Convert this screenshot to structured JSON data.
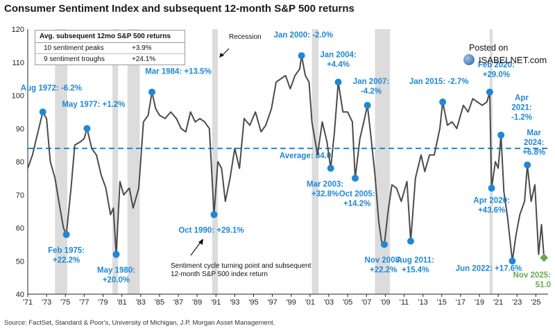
{
  "chart_data": {
    "type": "line",
    "title": "Consumer Sentiment Index and subsequent 12-month S&P 500 returns",
    "ylim": [
      40,
      120
    ],
    "yticks": [
      40,
      50,
      60,
      70,
      80,
      90,
      100,
      110,
      120
    ],
    "xlim": [
      1971,
      2026.3
    ],
    "xticks": [
      "'71",
      "'73",
      "'75",
      "'77",
      "'79",
      "'81",
      "'83",
      "'85",
      "'87",
      "'89",
      "'91",
      "'93",
      "'95",
      "'97",
      "'99",
      "'01",
      "'03",
      "'05",
      "'07",
      "'09",
      "'11",
      "'13",
      "'15",
      "'17",
      "'19",
      "'21",
      "'23",
      "'25"
    ],
    "average": {
      "value": 84.0,
      "label": "Average: 84.0"
    },
    "recessions": [
      [
        1973.9,
        1975.2
      ],
      [
        1980.0,
        1980.6
      ],
      [
        1981.6,
        1982.9
      ],
      [
        1990.6,
        1991.2
      ],
      [
        2001.2,
        2001.9
      ],
      [
        2007.9,
        2009.5
      ],
      [
        2020.1,
        2020.4
      ]
    ],
    "recession_label": "Recession",
    "series": [
      {
        "values": [
          [
            1971.0,
            78
          ],
          [
            1971.5,
            82
          ],
          [
            1972.0,
            88
          ],
          [
            1972.6,
            95
          ],
          [
            1973.0,
            93
          ],
          [
            1973.4,
            80
          ],
          [
            1973.9,
            75
          ],
          [
            1974.3,
            68
          ],
          [
            1974.8,
            60
          ],
          [
            1975.1,
            58
          ],
          [
            1975.6,
            72
          ],
          [
            1976.0,
            85
          ],
          [
            1976.6,
            86
          ],
          [
            1977.0,
            87
          ],
          [
            1977.3,
            90
          ],
          [
            1977.8,
            84
          ],
          [
            1978.3,
            82
          ],
          [
            1978.8,
            76
          ],
          [
            1979.3,
            72
          ],
          [
            1979.8,
            64
          ],
          [
            1980.1,
            66
          ],
          [
            1980.4,
            52
          ],
          [
            1980.8,
            74
          ],
          [
            1981.2,
            70
          ],
          [
            1981.8,
            72
          ],
          [
            1982.2,
            66
          ],
          [
            1982.8,
            72
          ],
          [
            1983.3,
            92
          ],
          [
            1983.8,
            94
          ],
          [
            1984.2,
            101
          ],
          [
            1984.6,
            96
          ],
          [
            1985.0,
            94
          ],
          [
            1985.6,
            93
          ],
          [
            1986.2,
            95
          ],
          [
            1986.8,
            93
          ],
          [
            1987.3,
            90
          ],
          [
            1987.8,
            89
          ],
          [
            1988.3,
            95
          ],
          [
            1988.8,
            92
          ],
          [
            1989.3,
            93
          ],
          [
            1989.8,
            92
          ],
          [
            1990.3,
            90
          ],
          [
            1990.8,
            64
          ],
          [
            1991.2,
            80
          ],
          [
            1991.6,
            78
          ],
          [
            1992.0,
            68
          ],
          [
            1992.5,
            75
          ],
          [
            1993.0,
            84
          ],
          [
            1993.5,
            78
          ],
          [
            1994.0,
            93
          ],
          [
            1994.6,
            91
          ],
          [
            1995.2,
            95
          ],
          [
            1995.8,
            89
          ],
          [
            1996.3,
            91
          ],
          [
            1996.9,
            96
          ],
          [
            1997.4,
            104
          ],
          [
            1997.9,
            105
          ],
          [
            1998.4,
            106
          ],
          [
            1998.9,
            102
          ],
          [
            1999.4,
            106
          ],
          [
            1999.9,
            108
          ],
          [
            2000.1,
            112
          ],
          [
            2000.5,
            106
          ],
          [
            2000.9,
            104
          ],
          [
            2001.2,
            92
          ],
          [
            2001.8,
            82
          ],
          [
            2002.3,
            92
          ],
          [
            2002.8,
            86
          ],
          [
            2003.2,
            78
          ],
          [
            2003.6,
            89
          ],
          [
            2004.0,
            104
          ],
          [
            2004.5,
            95
          ],
          [
            2005.0,
            95
          ],
          [
            2005.5,
            92
          ],
          [
            2005.8,
            75
          ],
          [
            2006.3,
            87
          ],
          [
            2006.8,
            93
          ],
          [
            2007.1,
            97
          ],
          [
            2007.5,
            87
          ],
          [
            2007.9,
            76
          ],
          [
            2008.3,
            62
          ],
          [
            2008.6,
            56
          ],
          [
            2008.9,
            55
          ],
          [
            2009.3,
            65
          ],
          [
            2009.7,
            73
          ],
          [
            2010.2,
            72
          ],
          [
            2010.7,
            68
          ],
          [
            2011.3,
            74
          ],
          [
            2011.7,
            56
          ],
          [
            2012.2,
            75
          ],
          [
            2012.8,
            82
          ],
          [
            2013.2,
            77
          ],
          [
            2013.7,
            82
          ],
          [
            2014.2,
            82
          ],
          [
            2014.8,
            90
          ],
          [
            2015.1,
            98
          ],
          [
            2015.6,
            91
          ],
          [
            2016.1,
            92
          ],
          [
            2016.6,
            90
          ],
          [
            2016.9,
            93
          ],
          [
            2017.3,
            97
          ],
          [
            2017.8,
            95
          ],
          [
            2018.3,
            99
          ],
          [
            2018.8,
            98
          ],
          [
            2019.3,
            97
          ],
          [
            2019.8,
            98
          ],
          [
            2020.1,
            101
          ],
          [
            2020.3,
            72
          ],
          [
            2020.7,
            80
          ],
          [
            2021.0,
            78
          ],
          [
            2021.3,
            88
          ],
          [
            2021.6,
            71
          ],
          [
            2022.0,
            63
          ],
          [
            2022.5,
            50
          ],
          [
            2022.9,
            58
          ],
          [
            2023.3,
            64
          ],
          [
            2023.8,
            68
          ],
          [
            2024.1,
            79
          ],
          [
            2024.5,
            68
          ],
          [
            2024.9,
            73
          ],
          [
            2025.3,
            52
          ],
          [
            2025.6,
            61
          ],
          [
            2025.87,
            51
          ]
        ]
      }
    ],
    "annotations": [
      {
        "x": 1972.6,
        "y": 95,
        "label": "Aug 1972: -6.2%",
        "tx": 1973.5,
        "ty": 101.5,
        "anchor": "middle",
        "lines": [
          "Aug 1972: -6.2%"
        ]
      },
      {
        "x": 1975.1,
        "y": 58,
        "label": "Feb 1975: +22.2%",
        "tx": 1975.1,
        "ty": 52.5,
        "anchor": "middle",
        "lines": [
          "Feb 1975:",
          "+22.2%"
        ]
      },
      {
        "x": 1977.3,
        "y": 90,
        "label": "May 1977: +1.2%",
        "tx": 1978.0,
        "ty": 96.5,
        "anchor": "middle",
        "lines": [
          "May 1977: +1.2%"
        ]
      },
      {
        "x": 1980.4,
        "y": 52,
        "label": "May 1980: +20.0%",
        "tx": 1980.4,
        "ty": 46.5,
        "anchor": "middle",
        "lines": [
          "May 1980:",
          "+20.0%"
        ]
      },
      {
        "x": 1984.2,
        "y": 101,
        "label": "Mar 1984: +13.5%",
        "tx": 1987.0,
        "ty": 106.5,
        "anchor": "middle",
        "lines": [
          "Mar 1984: +13.5%"
        ]
      },
      {
        "x": 1990.8,
        "y": 64,
        "label": "Oct 1990: +29.1%",
        "tx": 1990.5,
        "ty": 58.5,
        "anchor": "middle",
        "lines": [
          "Oct 1990: +29.1%"
        ]
      },
      {
        "x": 2000.1,
        "y": 112,
        "label": "Jan 2000: -2.0%",
        "tx": 2000.3,
        "ty": 117.5,
        "anchor": "middle",
        "lines": [
          "Jan 2000: -2.0%"
        ]
      },
      {
        "x": 2003.2,
        "y": 78,
        "label": "Mar 2003: +32.8%",
        "tx": 2002.6,
        "ty": 72.5,
        "anchor": "middle",
        "lines": [
          "Mar 2003:",
          "+32.8%"
        ]
      },
      {
        "x": 2004.0,
        "y": 104,
        "label": "Jan 2004: +4.4%",
        "tx": 2004.0,
        "ty": 111.5,
        "anchor": "middle",
        "lines": [
          "Jan 2004:",
          "+4.4%"
        ]
      },
      {
        "x": 2005.8,
        "y": 75,
        "label": "Oct 2005: +14.2%",
        "tx": 2006.0,
        "ty": 69.5,
        "anchor": "middle",
        "lines": [
          "Oct 2005:",
          "+14.2%"
        ]
      },
      {
        "x": 2007.1,
        "y": 97,
        "label": "Jan 2007: -4.2%",
        "tx": 2007.5,
        "ty": 103.5,
        "anchor": "middle",
        "lines": [
          "Jan 2007:",
          "-4.2%"
        ]
      },
      {
        "x": 2008.9,
        "y": 55,
        "label": "Nov 2008: +22.2%",
        "tx": 2008.8,
        "ty": 49.5,
        "anchor": "middle",
        "lines": [
          "Nov 2008:",
          "+22.2%"
        ]
      },
      {
        "x": 2011.7,
        "y": 56,
        "label": "Aug 2011: +15.4%",
        "tx": 2012.2,
        "ty": 49.5,
        "anchor": "middle",
        "lines": [
          "Aug 2011:",
          "+15.4%"
        ]
      },
      {
        "x": 2015.1,
        "y": 98,
        "label": "Jan 2015: -2.7%",
        "tx": 2014.7,
        "ty": 103.5,
        "anchor": "middle",
        "lines": [
          "Jan 2015: -2.7%"
        ]
      },
      {
        "x": 2020.1,
        "y": 101,
        "label": "Feb 2020: +29.0%",
        "tx": 2020.8,
        "ty": 108.5,
        "anchor": "middle",
        "lines": [
          "Feb 2020:",
          "+29.0%"
        ]
      },
      {
        "x": 2020.3,
        "y": 72,
        "label": "Apr 2020: +43.6%",
        "tx": 2020.3,
        "ty": 67.5,
        "anchor": "middle",
        "lines": [
          "Apr 2020:",
          "+43.6%"
        ]
      },
      {
        "x": 2021.3,
        "y": 88,
        "label": "Apr 2021: -1.2%",
        "tx": 2023.5,
        "ty": 98.5,
        "anchor": "middle",
        "lines": [
          "Apr",
          "2021:",
          "-1.2%"
        ]
      },
      {
        "x": 2022.5,
        "y": 50,
        "label": "Jun 2022: +17.6%",
        "tx": 2020.0,
        "ty": 47.0,
        "anchor": "middle",
        "lines": [
          "Jun 2022: +17.6%"
        ]
      },
      {
        "x": 2024.1,
        "y": 79,
        "label": "Mar 2024: +6.8%",
        "tx": 2024.8,
        "ty": 88.0,
        "anchor": "middle",
        "lines": [
          "Mar",
          "2024:",
          "+6.8%"
        ]
      }
    ],
    "current": {
      "x": 2025.87,
      "y": 51,
      "lines": [
        "Nov 2025:",
        "51.0"
      ],
      "color": "#6aa84f"
    },
    "arrow_note": [
      "Sentiment cycle turning point and subsequent",
      "12-month S&P 500 index return"
    ],
    "colors": {
      "line": "#4a4a4a",
      "dot": "#1e88d6",
      "average": "#1e88d6",
      "recession": "#dcdcdc"
    }
  },
  "legend": {
    "header": "Avg. subsequent 12mo S&P 500 returns",
    "rows": [
      {
        "label": "10 sentiment peaks",
        "value": "+3.9%"
      },
      {
        "label": "9 sentiment troughs",
        "value": "+24.1%"
      }
    ]
  },
  "posted": {
    "line1": "Posted on",
    "line2": "ISABELNET.com"
  },
  "source": "Source: FactSet, Standard & Poor's, University of Michigan, J.P. Morgan Asset Management."
}
